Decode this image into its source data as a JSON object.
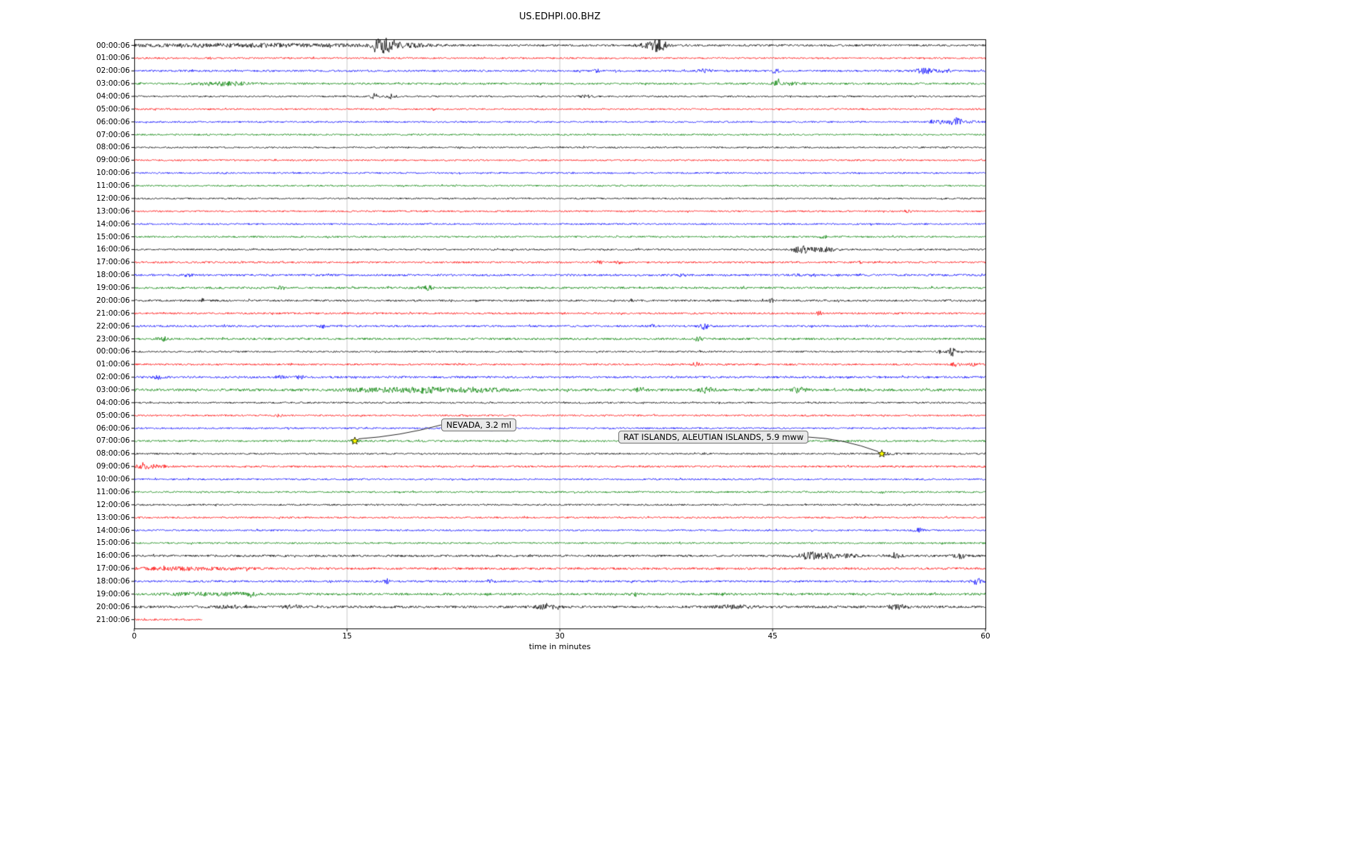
{
  "title": "US.EDHPI.00.BHZ",
  "chart_data": {
    "type": "line",
    "subtype": "helicorder-dayplot-seismogram",
    "title": "US.EDHPI.00.BHZ",
    "xlabel": "time in minutes",
    "ylabel": "",
    "xlim": [
      0,
      60
    ],
    "xticks": [
      0,
      15,
      30,
      45,
      60
    ],
    "grid": "vertical-only",
    "minutes_per_row": 60,
    "n_rows": 46,
    "last_row_end_minute": 4.8,
    "trace_color_cycle": [
      "#000000",
      "#ff0000",
      "#0000ff",
      "#008000"
    ],
    "row_labels": [
      "00:00:06",
      "01:00:06",
      "02:00:06",
      "03:00:06",
      "04:00:06",
      "05:00:06",
      "06:00:06",
      "07:00:06",
      "08:00:06",
      "09:00:06",
      "10:00:06",
      "11:00:06",
      "12:00:06",
      "13:00:06",
      "14:00:06",
      "15:00:06",
      "16:00:06",
      "17:00:06",
      "18:00:06",
      "19:00:06",
      "20:00:06",
      "21:00:06",
      "22:00:06",
      "23:00:06",
      "00:00:06",
      "01:00:06",
      "02:00:06",
      "03:00:06",
      "04:00:06",
      "05:00:06",
      "06:00:06",
      "07:00:06",
      "08:00:06",
      "09:00:06",
      "10:00:06",
      "11:00:06",
      "12:00:06",
      "13:00:06",
      "14:00:06",
      "15:00:06",
      "16:00:06",
      "17:00:06",
      "18:00:06",
      "19:00:06",
      "20:00:06",
      "21:00:06"
    ],
    "row_noise": {
      "0": 1.3,
      "2": 1.15,
      "3": 1.15,
      "8": 0.95,
      "9": 0.95,
      "10": 0.95,
      "11": 0.95,
      "12": 0.95,
      "17": 1.1,
      "18": 1.2,
      "19": 1.2,
      "20": 1.15,
      "21": 1.1,
      "22": 1.15,
      "23": 1.25,
      "25": 1.1,
      "26": 1.25,
      "27": 1.5,
      "31": 1.15,
      "33": 1.1,
      "40": 1.3,
      "41": 1.35,
      "42": 1.2,
      "43": 1.35,
      "44": 1.4,
      "45": 1.1
    },
    "events_format": [
      "row_index",
      "minute_center",
      "relative_amplitude",
      "width_minutes"
    ],
    "events": [
      [
        0,
        8,
        1.8,
        6
      ],
      [
        0,
        17.6,
        9,
        0.5
      ],
      [
        0,
        18.8,
        2.5,
        1.2
      ],
      [
        0,
        35.8,
        1.5,
        0.4
      ],
      [
        0,
        36.9,
        8,
        0.45
      ],
      [
        1,
        5.3,
        1.5,
        0.1
      ],
      [
        2,
        32.6,
        2.0,
        0.15
      ],
      [
        2,
        40.2,
        2.5,
        0.3
      ],
      [
        2,
        45.2,
        4.0,
        0.15
      ],
      [
        2,
        55.8,
        3.5,
        0.5
      ],
      [
        2,
        57.2,
        2.0,
        0.3
      ],
      [
        3,
        5.5,
        1.8,
        0.8
      ],
      [
        3,
        7.2,
        1.8,
        0.8
      ],
      [
        3,
        45.3,
        3.5,
        0.2
      ],
      [
        3,
        46.3,
        1.8,
        0.3
      ],
      [
        4,
        16.9,
        4.0,
        0.2
      ],
      [
        4,
        18.1,
        3.5,
        0.25
      ],
      [
        4,
        31.8,
        2.2,
        0.3
      ],
      [
        5,
        21.1,
        2.0,
        0.1
      ],
      [
        6,
        56.6,
        2.2,
        0.4
      ],
      [
        6,
        57.9,
        6.5,
        0.3
      ],
      [
        6,
        59.1,
        1.8,
        0.3
      ],
      [
        13,
        54.5,
        1.3,
        0.2
      ],
      [
        15,
        48.6,
        2.2,
        0.2
      ],
      [
        16,
        47.0,
        5.0,
        0.4
      ],
      [
        16,
        48.5,
        3.0,
        0.7
      ],
      [
        17,
        32.8,
        2.6,
        0.15
      ],
      [
        17,
        34.2,
        1.8,
        0.2
      ],
      [
        17,
        51.2,
        1.8,
        0.1
      ],
      [
        18,
        3.8,
        2.2,
        0.2
      ],
      [
        18,
        38.6,
        1.8,
        0.2
      ],
      [
        18,
        46.8,
        1.8,
        0.15
      ],
      [
        19,
        10.4,
        3.0,
        0.15
      ],
      [
        19,
        20.7,
        2.6,
        0.25
      ],
      [
        20,
        4.8,
        2.2,
        0.1
      ],
      [
        20,
        35.0,
        2.2,
        0.12
      ],
      [
        20,
        44.9,
        2.6,
        0.12
      ],
      [
        21,
        48.3,
        2.2,
        0.15
      ],
      [
        22,
        13.3,
        2.2,
        0.2
      ],
      [
        22,
        36.5,
        1.8,
        0.2
      ],
      [
        22,
        40.1,
        4.0,
        0.3
      ],
      [
        23,
        2.0,
        2.6,
        0.3
      ],
      [
        23,
        39.8,
        2.2,
        0.25
      ],
      [
        24,
        56.8,
        1.8,
        0.15
      ],
      [
        24,
        57.6,
        6.5,
        0.2
      ],
      [
        25,
        39.6,
        2.6,
        0.2
      ],
      [
        25,
        57.9,
        2.2,
        0.2
      ],
      [
        25,
        59.2,
        2.2,
        0.2
      ],
      [
        26,
        1.7,
        2.6,
        0.2
      ],
      [
        26,
        10.2,
        2.2,
        0.2
      ],
      [
        26,
        11.7,
        2.2,
        0.2
      ],
      [
        27,
        17.5,
        2.2,
        2.0
      ],
      [
        27,
        20.5,
        2.6,
        1.0
      ],
      [
        27,
        24.0,
        2.6,
        1.5
      ],
      [
        27,
        35.7,
        2.6,
        0.3
      ],
      [
        27,
        40.3,
        3.5,
        0.4
      ],
      [
        27,
        46.8,
        3.0,
        0.4
      ],
      [
        29,
        10.2,
        1.8,
        0.2
      ],
      [
        30,
        24.5,
        1.8,
        0.2
      ],
      [
        30,
        25.1,
        4.5,
        0.2
      ],
      [
        31,
        15.5,
        1.5,
        0.2
      ],
      [
        32,
        53.2,
        1.3,
        0.3
      ],
      [
        33,
        0.8,
        2.6,
        0.5
      ],
      [
        33,
        1.8,
        1.8,
        0.4
      ],
      [
        35,
        52.8,
        1.4,
        0.15
      ],
      [
        38,
        55.3,
        3.0,
        0.25
      ],
      [
        40,
        47.6,
        4.5,
        0.5
      ],
      [
        40,
        48.9,
        3.0,
        0.5
      ],
      [
        40,
        50.5,
        2.2,
        0.4
      ],
      [
        40,
        53.7,
        2.2,
        0.3
      ],
      [
        40,
        58.2,
        3.0,
        0.4
      ],
      [
        41,
        3.5,
        1.6,
        3.0
      ],
      [
        42,
        17.8,
        3.0,
        0.15
      ],
      [
        42,
        25.1,
        2.2,
        0.2
      ],
      [
        42,
        59.4,
        3.5,
        0.3
      ],
      [
        43,
        4.0,
        1.8,
        1.2
      ],
      [
        43,
        7.5,
        1.8,
        1.2
      ],
      [
        43,
        35.3,
        2.2,
        0.2
      ],
      [
        44,
        6.7,
        2.2,
        0.5
      ],
      [
        44,
        11.2,
        2.2,
        0.4
      ],
      [
        44,
        29.0,
        2.2,
        0.8
      ],
      [
        44,
        42.5,
        2.2,
        1.0
      ],
      [
        44,
        53.8,
        2.6,
        0.5
      ]
    ],
    "annotations": [
      {
        "text": "NEVADA, 3.2 ml",
        "row": 31,
        "minute": 15.55,
        "marker": "yellow-star",
        "marker_color": "#ffff00"
      },
      {
        "text": "RAT ISLANDS, ALEUTIAN ISLANDS, 5.9 mww",
        "row": 32,
        "minute": 52.7,
        "marker": "yellow-star",
        "marker_color": "#ffff00"
      }
    ]
  }
}
